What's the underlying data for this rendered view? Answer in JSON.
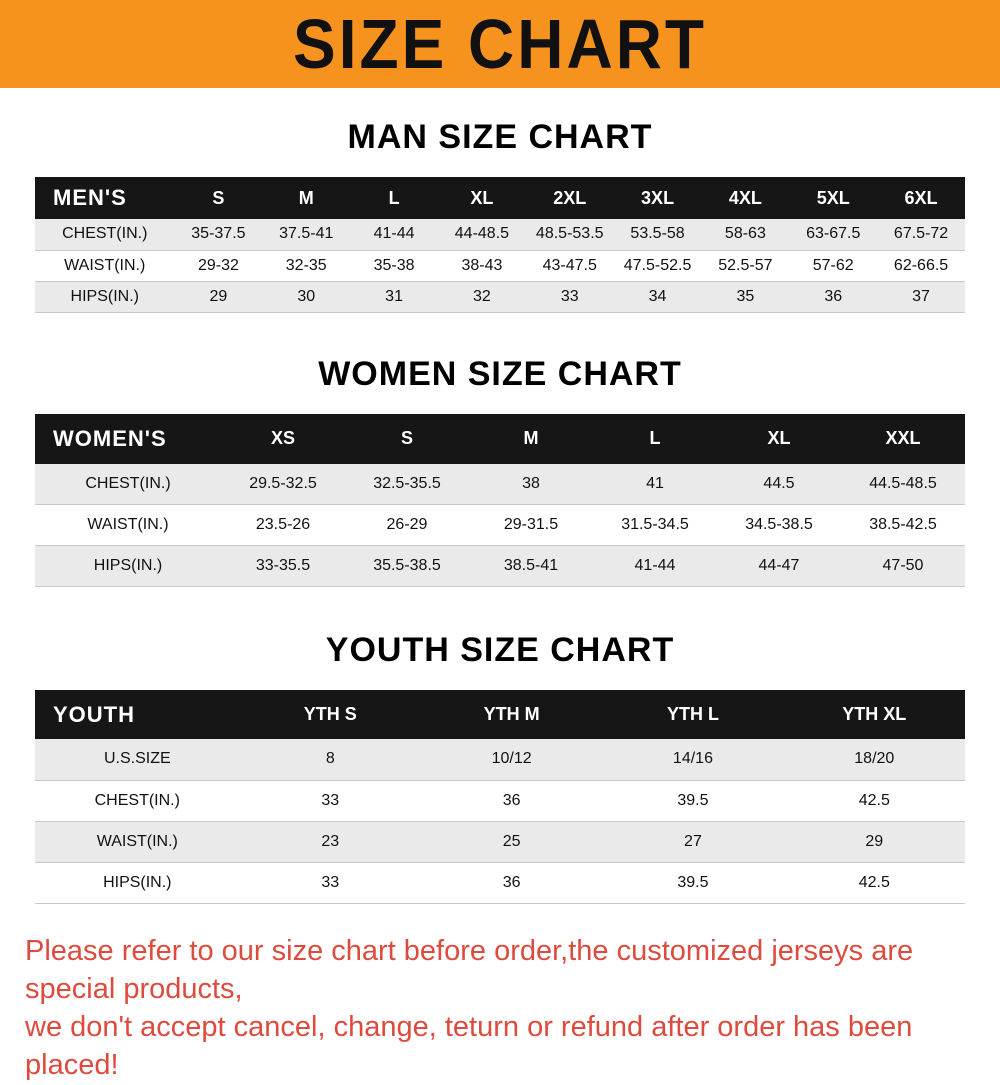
{
  "banner": {
    "title": "SIZE CHART",
    "bg_color": "#F6921E"
  },
  "colors": {
    "table_header_bg": "#161616",
    "row_stripe": "#EAEAEA",
    "disclaimer_red": "#DD4B3E"
  },
  "sections": [
    {
      "heading": "MAN SIZE CHART",
      "table": {
        "header": [
          "MEN'S",
          "S",
          "M",
          "L",
          "XL",
          "2XL",
          "3XL",
          "4XL",
          "5XL",
          "6XL"
        ],
        "rows": [
          [
            "CHEST(IN.)",
            "35-37.5",
            "37.5-41",
            "41-44",
            "44-48.5",
            "48.5-53.5",
            "53.5-58",
            "58-63",
            "63-67.5",
            "67.5-72"
          ],
          [
            "WAIST(IN.)",
            "29-32",
            "32-35",
            "35-38",
            "38-43",
            "43-47.5",
            "47.5-52.5",
            "52.5-57",
            "57-62",
            "62-66.5"
          ],
          [
            "HIPS(IN.)",
            "29",
            "30",
            "31",
            "32",
            "33",
            "34",
            "35",
            "36",
            "37"
          ]
        ]
      }
    },
    {
      "heading": "WOMEN SIZE CHART",
      "table": {
        "header": [
          "WOMEN'S",
          "XS",
          "S",
          "M",
          "L",
          "XL",
          "XXL"
        ],
        "rows": [
          [
            "CHEST(IN.)",
            "29.5-32.5",
            "32.5-35.5",
            "38",
            "41",
            "44.5",
            "44.5-48.5"
          ],
          [
            "WAIST(IN.)",
            "23.5-26",
            "26-29",
            "29-31.5",
            "31.5-34.5",
            "34.5-38.5",
            "38.5-42.5"
          ],
          [
            "HIPS(IN.)",
            "33-35.5",
            "35.5-38.5",
            "38.5-41",
            "41-44",
            "44-47",
            "47-50"
          ]
        ]
      }
    },
    {
      "heading": "YOUTH SIZE CHART",
      "table": {
        "header": [
          "YOUTH",
          "YTH S",
          "YTH M",
          "YTH L",
          "YTH XL"
        ],
        "rows": [
          [
            "U.S.SIZE",
            "8",
            "10/12",
            "14/16",
            "18/20"
          ],
          [
            "CHEST(IN.)",
            "33",
            "36",
            "39.5",
            "42.5"
          ],
          [
            "WAIST(IN.)",
            "23",
            "25",
            "27",
            "29"
          ],
          [
            "HIPS(IN.)",
            "33",
            "36",
            "39.5",
            "42.5"
          ]
        ]
      }
    }
  ],
  "disclaimer": {
    "line1": "Please refer to our size chart before order,the customized jerseys are special products,",
    "line2": "we don't accept cancel, change, teturn or refund after order has been placed!"
  }
}
